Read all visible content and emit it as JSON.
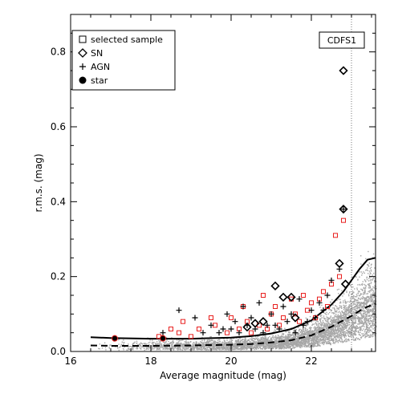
{
  "chart_data": {
    "type": "scatter",
    "title": "",
    "xlabel": "Average magnitude (mag)",
    "ylabel": "r.m.s. (mag)",
    "xlim": [
      16,
      23.6
    ],
    "ylim": [
      0,
      0.9
    ],
    "xticks": [
      16,
      18,
      20,
      22
    ],
    "yticks": [
      0.0,
      0.2,
      0.4,
      0.6,
      0.8
    ],
    "tag": "CDFS1",
    "cutoff_x": 23.0,
    "grid": false,
    "legend_position": "top-left",
    "legend": [
      {
        "label": "selected sample",
        "marker": "square"
      },
      {
        "label": "SN",
        "marker": "diamond"
      },
      {
        "label": "AGN",
        "marker": "plus"
      },
      {
        "label": "star",
        "marker": "filled-circle"
      }
    ],
    "colors": {
      "background_cloud": "#a6a6a6",
      "selected": "#e8201f",
      "markers": "#000000"
    },
    "threshold_curve": {
      "x": [
        16.5,
        17,
        18,
        19,
        20,
        20.5,
        21,
        21.5,
        22,
        22.5,
        22.8,
        23,
        23.2,
        23.4,
        23.6
      ],
      "y": [
        0.038,
        0.036,
        0.034,
        0.034,
        0.037,
        0.041,
        0.048,
        0.06,
        0.083,
        0.125,
        0.16,
        0.19,
        0.22,
        0.245,
        0.25
      ]
    },
    "median_curve": {
      "x": [
        16.5,
        17,
        18,
        19,
        20,
        20.5,
        21,
        21.5,
        22,
        22.5,
        23,
        23.3,
        23.6
      ],
      "y": [
        0.016,
        0.015,
        0.015,
        0.016,
        0.018,
        0.02,
        0.024,
        0.03,
        0.043,
        0.066,
        0.095,
        0.115,
        0.128
      ]
    },
    "series": [
      {
        "name": "selected sample",
        "x": [
          18.2,
          18.5,
          18.8,
          19.2,
          19.6,
          19.9,
          20.0,
          20.2,
          20.4,
          20.5,
          20.7,
          20.9,
          21.0,
          21.1,
          21.3,
          21.5,
          21.7,
          21.9,
          22.0,
          22.1,
          22.3,
          22.4,
          22.5,
          22.6,
          22.7,
          22.8,
          19.0,
          19.5,
          20.3,
          20.8,
          21.2,
          21.6,
          21.8,
          22.2,
          18.7
        ],
        "y": [
          0.04,
          0.06,
          0.08,
          0.06,
          0.07,
          0.05,
          0.09,
          0.06,
          0.08,
          0.05,
          0.07,
          0.06,
          0.1,
          0.12,
          0.09,
          0.14,
          0.08,
          0.11,
          0.13,
          0.09,
          0.16,
          0.12,
          0.18,
          0.31,
          0.2,
          0.35,
          0.04,
          0.09,
          0.12,
          0.15,
          0.07,
          0.1,
          0.15,
          0.14,
          0.05
        ]
      },
      {
        "name": "SN",
        "x": [
          20.4,
          20.6,
          20.8,
          21.1,
          21.3,
          21.5,
          21.6,
          22.7,
          22.8,
          22.8,
          22.85
        ],
        "y": [
          0.065,
          0.075,
          0.08,
          0.175,
          0.145,
          0.145,
          0.09,
          0.235,
          0.38,
          0.75,
          0.18
        ]
      },
      {
        "name": "AGN",
        "x": [
          18.7,
          19.1,
          19.3,
          19.5,
          19.7,
          19.9,
          20.0,
          20.1,
          20.2,
          20.3,
          20.5,
          20.6,
          20.7,
          20.9,
          21.0,
          21.2,
          21.3,
          21.4,
          21.6,
          21.7,
          21.8,
          22.0,
          22.1,
          22.2,
          22.4,
          22.5,
          22.7,
          22.8,
          18.3,
          19.8,
          20.4,
          21.5,
          21.9,
          22.3,
          21.1,
          20.8
        ],
        "y": [
          0.11,
          0.09,
          0.05,
          0.07,
          0.05,
          0.1,
          0.06,
          0.08,
          0.05,
          0.12,
          0.09,
          0.06,
          0.13,
          0.07,
          0.1,
          0.06,
          0.12,
          0.08,
          0.05,
          0.14,
          0.07,
          0.11,
          0.09,
          0.13,
          0.15,
          0.19,
          0.22,
          0.38,
          0.05,
          0.06,
          0.07,
          0.1,
          0.08,
          0.11,
          0.07,
          0.05
        ]
      },
      {
        "name": "star",
        "x": [
          17.1,
          18.3
        ],
        "y": [
          0.035,
          0.035
        ]
      }
    ]
  }
}
